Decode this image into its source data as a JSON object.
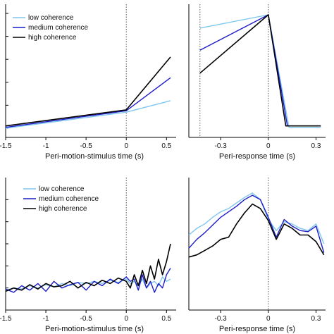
{
  "colors": {
    "low": "#7fc6ee",
    "medium": "#1c1cc8",
    "high": "#000000"
  },
  "chart_data": [
    {
      "type": "line",
      "panel": "top-left",
      "xlabel": "Peri-motion-stimulus time (s)",
      "xlim": [
        -1.5,
        0.62
      ],
      "ylim": [
        0.3,
        3.2
      ],
      "xticks": [
        -1.5,
        -1,
        -0.5,
        0,
        0.5
      ],
      "xtick_labels": [
        "-1.5",
        "-1",
        "-0.5",
        "0",
        "0.5"
      ],
      "yticks": [
        0.5,
        1,
        1.5,
        2,
        2.5,
        3
      ],
      "vline_at": 0,
      "legend": [
        "low coherence",
        "medium coherence",
        "high coherence"
      ],
      "legend_position": "top-left",
      "series": [
        {
          "name": "low coherence",
          "color_key": "low",
          "x": [
            -1.5,
            0,
            0.55
          ],
          "y": [
            0.5,
            0.85,
            1.1
          ]
        },
        {
          "name": "medium coherence",
          "color_key": "medium",
          "x": [
            -1.5,
            0,
            0.55
          ],
          "y": [
            0.52,
            0.88,
            1.6
          ]
        },
        {
          "name": "high coherence",
          "color_key": "high",
          "x": [
            -1.5,
            0,
            0.55
          ],
          "y": [
            0.55,
            0.9,
            2.05
          ]
        }
      ]
    },
    {
      "type": "line",
      "panel": "top-right",
      "xlabel": "Peri-response time (s)",
      "xlim": [
        -0.5,
        0.36
      ],
      "ylim": [
        0.3,
        3.2
      ],
      "xticks": [
        -0.3,
        0,
        0.3
      ],
      "xtick_labels": [
        "-0.3",
        "0",
        "0.3"
      ],
      "yticks": [],
      "vline_at": [
        -0.43,
        0
      ],
      "series": [
        {
          "name": "low coherence",
          "color_key": "low",
          "x": [
            -0.43,
            0,
            0.13,
            0.33
          ],
          "y": [
            2.68,
            2.97,
            0.52,
            0.52
          ]
        },
        {
          "name": "medium coherence",
          "color_key": "medium",
          "x": [
            -0.43,
            0,
            0.12,
            0.33
          ],
          "y": [
            2.2,
            2.97,
            0.55,
            0.55
          ]
        },
        {
          "name": "high coherence",
          "color_key": "high",
          "x": [
            -0.43,
            0,
            0.11,
            0.33
          ],
          "y": [
            1.7,
            2.97,
            0.55,
            0.55
          ]
        }
      ]
    },
    {
      "type": "line",
      "panel": "bottom-left",
      "xlabel": "Peri-motion-stimulus time (s)",
      "xlim": [
        -1.5,
        0.62
      ],
      "ylim": [
        0,
        6
      ],
      "xticks": [
        -1.5,
        -1,
        -0.5,
        0,
        0.5
      ],
      "xtick_labels": [
        "-1.5",
        "-1",
        "-0.5",
        "0",
        "0.5"
      ],
      "yticks": [
        1,
        2,
        3,
        4,
        5
      ],
      "vline_at": 0,
      "legend": [
        "low coherence",
        "medium coherence",
        "high coherence"
      ],
      "legend_position": "top-left",
      "series": [
        {
          "name": "low coherence",
          "color_key": "low",
          "x": [
            -1.5,
            -1.4,
            -1.3,
            -1.2,
            -1.1,
            -1.0,
            -0.9,
            -0.8,
            -0.7,
            -0.6,
            -0.5,
            -0.4,
            -0.3,
            -0.2,
            -0.1,
            0.0,
            0.05,
            0.1,
            0.15,
            0.2,
            0.25,
            0.3,
            0.35,
            0.4,
            0.45,
            0.5,
            0.55
          ],
          "y": [
            0.9,
            1.0,
            0.95,
            1.1,
            1.0,
            1.15,
            1.05,
            1.2,
            1.1,
            1.25,
            1.2,
            1.3,
            1.2,
            1.35,
            1.25,
            1.4,
            1.2,
            1.3,
            1.1,
            1.4,
            1.0,
            1.2,
            1.3,
            1.1,
            1.5,
            1.3,
            1.4
          ]
        },
        {
          "name": "medium coherence",
          "color_key": "medium",
          "x": [
            -1.5,
            -1.4,
            -1.3,
            -1.2,
            -1.1,
            -1.0,
            -0.9,
            -0.8,
            -0.7,
            -0.6,
            -0.5,
            -0.4,
            -0.3,
            -0.2,
            -0.1,
            0.0,
            0.05,
            0.1,
            0.15,
            0.2,
            0.25,
            0.3,
            0.35,
            0.4,
            0.45,
            0.5,
            0.55
          ],
          "y": [
            0.95,
            0.8,
            1.1,
            0.9,
            1.2,
            0.85,
            1.3,
            1.0,
            1.15,
            1.25,
            0.9,
            1.3,
            1.1,
            1.4,
            1.2,
            1.5,
            1.3,
            1.4,
            0.9,
            1.6,
            1.0,
            1.3,
            0.8,
            1.2,
            1.0,
            1.6,
            1.9
          ]
        },
        {
          "name": "high coherence",
          "color_key": "high",
          "x": [
            -1.5,
            -1.4,
            -1.3,
            -1.2,
            -1.1,
            -1.0,
            -0.9,
            -0.8,
            -0.7,
            -0.6,
            -0.5,
            -0.4,
            -0.3,
            -0.2,
            -0.1,
            0.0,
            0.05,
            0.1,
            0.15,
            0.2,
            0.25,
            0.3,
            0.35,
            0.4,
            0.45,
            0.5,
            0.55
          ],
          "y": [
            0.85,
            1.0,
            0.9,
            1.15,
            0.95,
            1.2,
            1.05,
            1.1,
            1.3,
            1.0,
            1.25,
            1.1,
            1.35,
            1.2,
            1.45,
            1.3,
            1.0,
            1.6,
            1.1,
            1.8,
            1.2,
            2.0,
            1.4,
            2.3,
            1.6,
            2.2,
            3.0
          ]
        }
      ]
    },
    {
      "type": "line",
      "panel": "bottom-right",
      "xlabel": "Peri-response time (s)",
      "xlim": [
        -0.5,
        0.36
      ],
      "ylim": [
        0,
        6
      ],
      "xticks": [
        -0.3,
        0,
        0.3
      ],
      "xtick_labels": [
        "-0.3",
        "0",
        "0.3"
      ],
      "yticks": [],
      "vline_at": 0,
      "series": [
        {
          "name": "low coherence",
          "color_key": "low",
          "x": [
            -0.5,
            -0.45,
            -0.4,
            -0.35,
            -0.3,
            -0.25,
            -0.2,
            -0.15,
            -0.1,
            -0.05,
            0.0,
            0.05,
            0.1,
            0.15,
            0.2,
            0.25,
            0.3,
            0.35
          ],
          "y": [
            3.4,
            3.7,
            3.9,
            4.2,
            4.45,
            4.6,
            4.85,
            5.1,
            5.3,
            5.0,
            4.1,
            3.6,
            4.0,
            3.9,
            3.7,
            3.6,
            3.9,
            3.0
          ]
        },
        {
          "name": "medium coherence",
          "color_key": "medium",
          "x": [
            -0.5,
            -0.45,
            -0.4,
            -0.35,
            -0.3,
            -0.25,
            -0.2,
            -0.15,
            -0.1,
            -0.05,
            0.0,
            0.05,
            0.1,
            0.15,
            0.2,
            0.25,
            0.3,
            0.35
          ],
          "y": [
            2.8,
            3.2,
            3.5,
            3.85,
            4.2,
            4.45,
            4.7,
            5.0,
            5.2,
            5.0,
            4.2,
            3.3,
            4.1,
            3.8,
            3.6,
            3.55,
            3.8,
            2.6
          ]
        },
        {
          "name": "high coherence",
          "color_key": "high",
          "x": [
            -0.5,
            -0.45,
            -0.4,
            -0.35,
            -0.3,
            -0.25,
            -0.2,
            -0.15,
            -0.1,
            -0.05,
            0.0,
            0.05,
            0.1,
            0.15,
            0.2,
            0.25,
            0.3,
            0.35
          ],
          "y": [
            2.4,
            2.5,
            2.7,
            2.9,
            3.2,
            3.3,
            3.9,
            4.4,
            4.8,
            4.6,
            4.05,
            3.2,
            3.9,
            3.7,
            3.4,
            3.4,
            3.1,
            2.5
          ]
        }
      ]
    }
  ]
}
